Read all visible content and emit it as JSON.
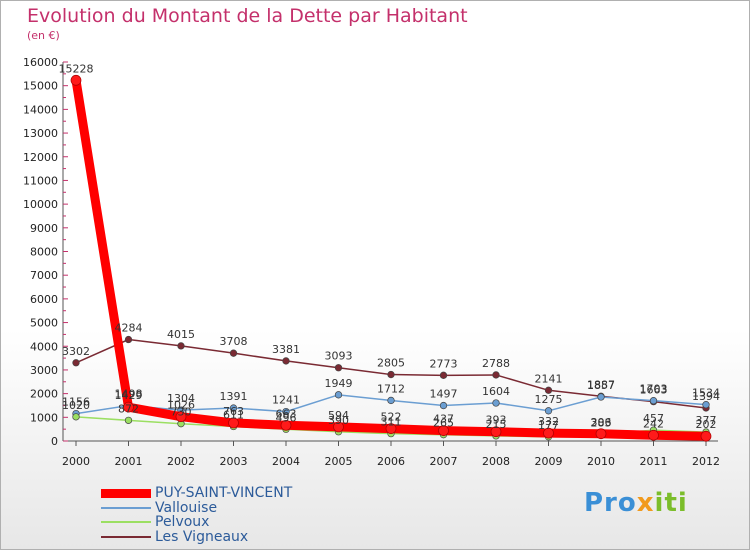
{
  "chart_data": {
    "type": "line",
    "title": "Evolution du Montant de la Dette par Habitant",
    "subtitle": "(en €)",
    "xlabel": "",
    "ylabel": "",
    "x": [
      "2000",
      "2001",
      "2002",
      "2003",
      "2004",
      "2005",
      "2006",
      "2007",
      "2008",
      "2009",
      "2010",
      "2011",
      "2012"
    ],
    "ylim": [
      0,
      16000
    ],
    "yticks": [
      0,
      1000,
      2000,
      3000,
      4000,
      5000,
      6000,
      7000,
      8000,
      9000,
      10000,
      11000,
      12000,
      13000,
      14000,
      15000,
      16000
    ],
    "grid": false,
    "legend_position": "bottom-left",
    "series": [
      {
        "name": "PUY-SAINT-VINCENT",
        "color": "#ff0000",
        "values": [
          15228,
          1429,
          1026,
          763,
          663,
          594,
          522,
          437,
          393,
          332,
          306,
          242,
          202
        ]
      },
      {
        "name": "Vallouise",
        "color": "#6b9ed2",
        "values": [
          1156,
          1498,
          1304,
          1391,
          1241,
          1949,
          1712,
          1497,
          1604,
          1275,
          1857,
          1703,
          1534
        ]
      },
      {
        "name": "Pelvoux",
        "color": "#9bdf62",
        "values": [
          1020,
          872,
          730,
          611,
          496,
          390,
          311,
          265,
          215,
          177,
          283,
          457,
          377
        ]
      },
      {
        "name": "Les Vigneaux",
        "color": "#7a2a33",
        "values": [
          3302,
          4284,
          4015,
          3708,
          3381,
          3093,
          2805,
          2773,
          2788,
          2141,
          1887,
          1663,
          1394
        ]
      }
    ]
  },
  "logo": {
    "part1": "Pro",
    "part2": "x",
    "part3": "iti"
  }
}
